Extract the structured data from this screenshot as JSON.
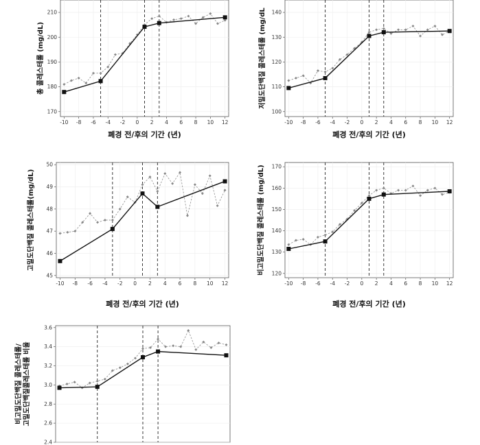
{
  "chart_data": [
    {
      "type": "line",
      "ylabel": "총 콜레스테롤 (mg/dL)",
      "xlabel": "폐경 전/후의 기간 (년)",
      "xlim": [
        -10.5,
        12.5
      ],
      "ylim": [
        168,
        215
      ],
      "yticks": [
        170,
        180,
        190,
        200,
        210
      ],
      "xticks": [
        -10,
        -8,
        -6,
        -4,
        -2,
        0,
        2,
        4,
        6,
        8,
        10,
        12
      ],
      "vlines": [
        -5,
        1,
        3
      ],
      "series": [
        {
          "style": "fitted",
          "x": [
            -10,
            -5,
            1,
            3,
            12
          ],
          "y": [
            177.9,
            182.3,
            204.2,
            205.7,
            208.0
          ]
        },
        {
          "style": "observed",
          "x": [
            -10,
            -9,
            -8,
            -7,
            -6,
            -5,
            -4,
            -3,
            -2,
            -1,
            0,
            1,
            2,
            3,
            4,
            5,
            6,
            7,
            8,
            9,
            10,
            11,
            12
          ],
          "y": [
            181,
            182.5,
            183.5,
            181.5,
            185.5,
            185.5,
            188,
            193,
            193.5,
            197.5,
            201,
            205,
            207.5,
            208.5,
            206,
            207,
            207.5,
            208.5,
            205.5,
            208,
            209.5,
            205.5,
            206.8
          ]
        }
      ]
    },
    {
      "type": "line",
      "ylabel": "저밀도단백질 콜레스테롤 (mg/dL",
      "xlabel": "폐경 전/후의 기간 (년)",
      "xlim": [
        -10.5,
        12.5
      ],
      "ylim": [
        98,
        145
      ],
      "yticks": [
        100,
        110,
        120,
        130,
        140
      ],
      "xticks": [
        -10,
        -8,
        -6,
        -4,
        -2,
        0,
        2,
        4,
        6,
        8,
        10,
        12
      ],
      "vlines": [
        -5,
        1,
        3
      ],
      "series": [
        {
          "style": "fitted",
          "x": [
            -10,
            -5,
            1,
            3,
            12
          ],
          "y": [
            109.5,
            113.5,
            130.5,
            132,
            132.5
          ]
        },
        {
          "style": "observed",
          "x": [
            -10,
            -9,
            -8,
            -7,
            -6,
            -5,
            -4,
            -3,
            -2,
            -1,
            0,
            1,
            2,
            3,
            4,
            5,
            6,
            7,
            8,
            9,
            10,
            11,
            12
          ],
          "y": [
            112.5,
            113.5,
            114.5,
            111.5,
            116.5,
            116,
            117.5,
            121,
            123,
            125.5,
            128,
            132,
            133,
            133.5,
            131.5,
            133,
            133,
            134.5,
            130.5,
            133,
            134.5,
            131,
            132.5
          ]
        }
      ]
    },
    {
      "type": "line",
      "ylabel": "고밀도단백질 콜레스테롤(mg/dL)",
      "xlabel": "폐경 전/후의 기간 (년)",
      "xlim": [
        -10.5,
        12.5
      ],
      "ylim": [
        44.9,
        50.1
      ],
      "yticks": [
        45,
        46,
        47,
        48,
        49,
        50
      ],
      "xticks": [
        -10,
        -8,
        -6,
        -4,
        -2,
        0,
        2,
        4,
        6,
        8,
        10,
        12
      ],
      "vlines": [
        -3,
        1,
        3
      ],
      "series": [
        {
          "style": "fitted",
          "x": [
            -10,
            -3,
            1,
            3,
            12
          ],
          "y": [
            45.65,
            47.1,
            48.7,
            48.1,
            49.25
          ]
        },
        {
          "style": "observed",
          "x": [
            -10,
            -9,
            -8,
            -7,
            -6,
            -5,
            -4,
            -3,
            -2,
            -1,
            0,
            1,
            2,
            3,
            4,
            5,
            6,
            7,
            8,
            9,
            10,
            11,
            12
          ],
          "y": [
            46.9,
            46.95,
            47.0,
            47.4,
            47.8,
            47.4,
            47.5,
            47.5,
            48.0,
            48.55,
            48.3,
            49.1,
            49.45,
            48.8,
            49.6,
            49.15,
            49.65,
            47.7,
            49.1,
            48.7,
            49.5,
            48.15,
            48.85
          ]
        }
      ]
    },
    {
      "type": "line",
      "ylabel": "비고밀도단백질 콜레스테롤 (mg/dL)",
      "xlabel": "폐경 전/후의 기간 (년)",
      "xlim": [
        -10.5,
        12.5
      ],
      "ylim": [
        118,
        172
      ],
      "yticks": [
        120,
        130,
        140,
        150,
        160,
        170
      ],
      "xticks": [
        -10,
        -8,
        -6,
        -4,
        -2,
        0,
        2,
        4,
        6,
        8,
        10,
        12
      ],
      "vlines": [
        -5,
        1,
        3
      ],
      "series": [
        {
          "style": "fitted",
          "x": [
            -10,
            -5,
            1,
            3,
            12
          ],
          "y": [
            131.5,
            135,
            155,
            157,
            158.5
          ]
        },
        {
          "style": "observed",
          "x": [
            -10,
            -9,
            -8,
            -7,
            -6,
            -5,
            -4,
            -3,
            -2,
            -1,
            0,
            1,
            2,
            3,
            4,
            5,
            6,
            7,
            8,
            9,
            10,
            11,
            12
          ],
          "y": [
            133.5,
            135.5,
            136,
            133.5,
            137,
            138,
            139.5,
            143,
            145.5,
            149.5,
            153,
            156.5,
            159,
            160,
            157.5,
            159,
            159,
            161,
            156.5,
            159,
            160,
            157,
            158
          ]
        }
      ]
    },
    {
      "type": "line",
      "ylabel": "비고밀도단백질 콜레스테롤/",
      "ylabel2": "고밀도단백질콜레스테롤 비율",
      "xlabel": "",
      "xlim": [
        -10.5,
        12.5
      ],
      "ylim": [
        2.4,
        3.62
      ],
      "yticks": [
        2.4,
        2.6,
        2.8,
        3.0,
        3.2,
        3.4,
        3.6
      ],
      "xticks": [],
      "vlines": [
        -5,
        1,
        3
      ],
      "series": [
        {
          "style": "fitted",
          "x": [
            -10,
            -5,
            1,
            3,
            12
          ],
          "y": [
            2.97,
            2.98,
            3.29,
            3.35,
            3.31
          ]
        },
        {
          "style": "observed",
          "x": [
            -10,
            -9,
            -8,
            -7,
            -6,
            -5,
            -4,
            -3,
            -2,
            -1,
            0,
            1,
            2,
            3,
            4,
            5,
            6,
            7,
            8,
            9,
            10,
            11,
            12
          ],
          "y": [
            2.99,
            3.01,
            3.03,
            2.97,
            3.02,
            3.04,
            3.06,
            3.15,
            3.18,
            3.22,
            3.28,
            3.38,
            3.39,
            3.48,
            3.4,
            3.41,
            3.4,
            3.57,
            3.37,
            3.45,
            3.39,
            3.44,
            3.42
          ]
        }
      ]
    }
  ]
}
